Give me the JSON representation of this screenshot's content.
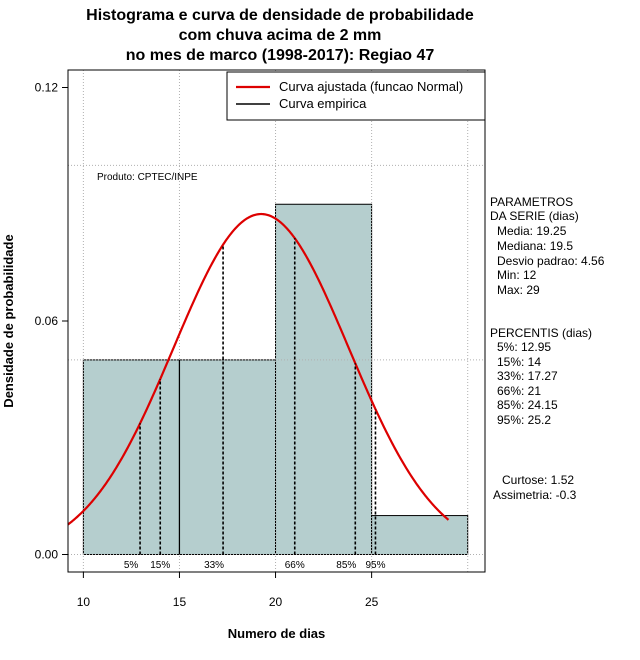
{
  "title_lines": [
    "Histograma e curva de densidade de probabilidade",
    "com chuva acima de 2 mm",
    "no mes de marco (1998-2017): Regiao 47"
  ],
  "product_label": "Produto: CPTEC/INPE",
  "legend": {
    "normal_label": "Curva ajustada (funcao Normal)",
    "empirical_label": "Curva empirica",
    "normal_color": "#dd0000",
    "empirical_color": "#000000"
  },
  "params": {
    "heading1": "PARAMETROS",
    "heading2": "DA SERIE (dias)",
    "media": "Media: 19.25",
    "mediana": "Mediana: 19.5",
    "desvio": "Desvio padrao: 4.56",
    "min": "Min: 12",
    "max": "Max: 29"
  },
  "percentis": {
    "heading": "PERCENTIS (dias)",
    "p5": "5%: 12.95",
    "p15": "15%: 14",
    "p33": "33%: 17.27",
    "p66": "66%: 21",
    "p85": "85%: 24.15",
    "p95": "95%: 25.2"
  },
  "stats": {
    "curtose": "Curtose: 1.52",
    "assimetria": "Assimetria: -0.3"
  },
  "chart_data": {
    "type": "bar",
    "title": "Histograma e curva de densidade de probabilidade com chuva acima de 2 mm no mes de marco (1998-2017): Regiao 47",
    "xlabel": "Numero de dias",
    "ylabel": "Densidade de probabilidade",
    "xlim": [
      9.2,
      30.9
    ],
    "ylim": [
      -0.0045,
      0.1245
    ],
    "x_ticks": [
      10,
      15,
      20,
      25
    ],
    "y_ticks": [
      0.0,
      0.06,
      0.12
    ],
    "y_tick_labels": [
      "0.00",
      "0.06",
      "0.12"
    ],
    "grid": true,
    "bar_color": "#b5cece",
    "bins": [
      {
        "left": 10,
        "right": 15,
        "density": 0.05
      },
      {
        "left": 15,
        "right": 20,
        "density": 0.05
      },
      {
        "left": 20,
        "right": 25,
        "density": 0.09
      },
      {
        "left": 25,
        "right": 30,
        "density": 0.01
      }
    ],
    "normal_curve": {
      "mean": 19.25,
      "sd": 4.56,
      "x_from": 9.2,
      "x_to": 29.0
    },
    "percentile_lines": [
      {
        "label": "5%",
        "x": 12.95
      },
      {
        "label": "15%",
        "x": 14.0
      },
      {
        "label": "33%",
        "x": 17.27
      },
      {
        "label": "66%",
        "x": 21.0
      },
      {
        "label": "85%",
        "x": 24.15
      },
      {
        "label": "95%",
        "x": 25.2
      }
    ],
    "empirical_lines": [
      {
        "x": 15,
        "from": 0.0,
        "to": 0.05
      }
    ]
  }
}
